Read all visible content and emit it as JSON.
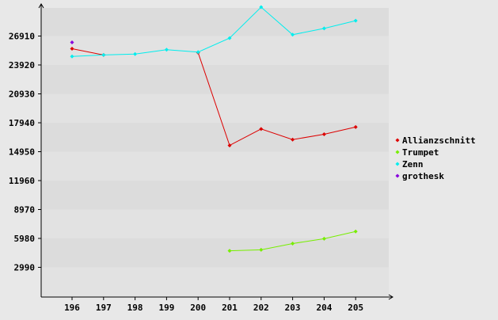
{
  "chart_data": {
    "type": "line",
    "categories": [
      "196",
      "197",
      "198",
      "199",
      "200",
      "201",
      "202",
      "203",
      "204",
      "205"
    ],
    "y_ticks": [
      "2990",
      "5980",
      "8970",
      "11960",
      "14950",
      "17940",
      "20930",
      "23920",
      "26910"
    ],
    "y_tick_values": [
      2990,
      5980,
      8970,
      11960,
      14950,
      17940,
      20930,
      23920,
      26910
    ],
    "ylim": [
      0,
      29900
    ],
    "grid": true,
    "legend_position": "right",
    "series": [
      {
        "name": "Allianzschnitt",
        "color": "#dd0000",
        "values": [
          25600,
          24950,
          null,
          null,
          25200,
          15600,
          17300,
          16200,
          16750,
          17500
        ]
      },
      {
        "name": "Trumpet",
        "color": "#77ee00",
        "values": [
          null,
          null,
          null,
          null,
          null,
          4700,
          4800,
          5450,
          5950,
          6700
        ]
      },
      {
        "name": "Zenn",
        "color": "#00eeee",
        "values": [
          24800,
          24950,
          25050,
          25500,
          25250,
          26700,
          29900,
          27050,
          27700,
          28500
        ]
      },
      {
        "name": "grothesk",
        "color": "#8800dd",
        "values": [
          26250,
          null,
          null,
          null,
          null,
          null,
          null,
          null,
          null,
          null
        ]
      }
    ]
  }
}
